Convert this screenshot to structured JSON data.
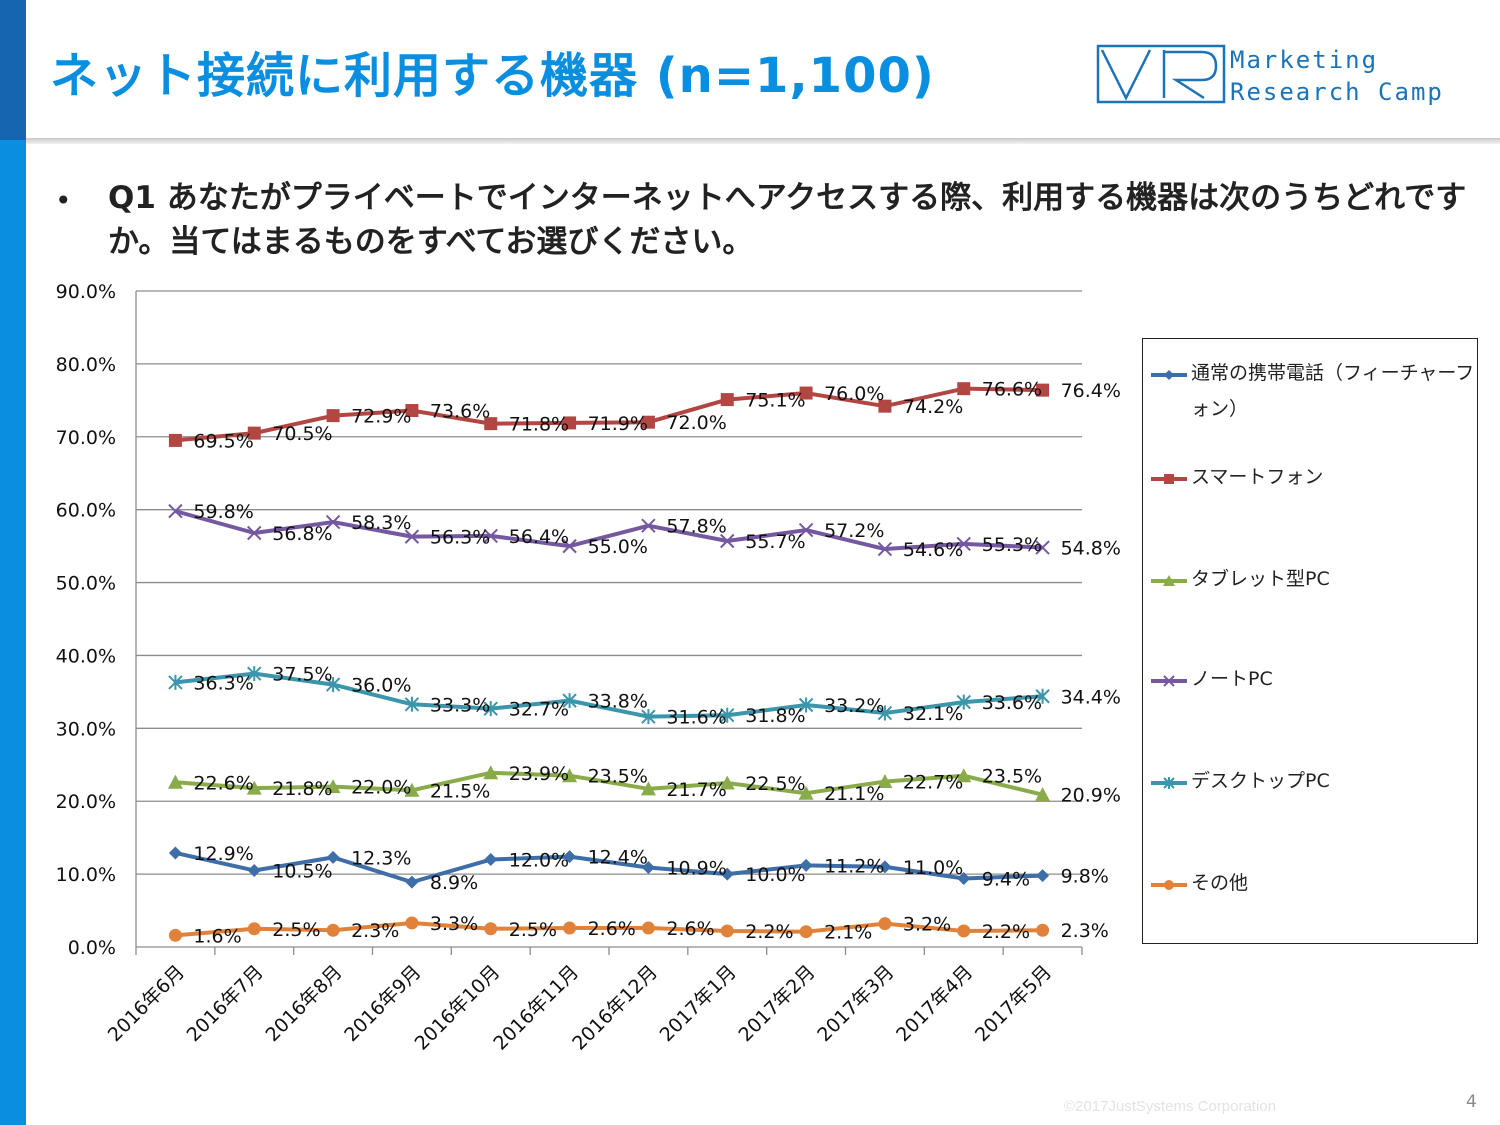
{
  "header": {
    "title": "ネット接続に利用する機器 (n=1,100)",
    "logo_line1": "Marketing",
    "logo_line2": "Research Camp"
  },
  "question": {
    "bullet": "•",
    "text": "Q1 あなたがプライベートでインターネットへアクセスする際、利用する機器は次のうちどれですか。当てはまるものをすべてお選びください。"
  },
  "footer": {
    "copyright": "©2017JustSystems Corporation",
    "page_number": "4"
  },
  "chart_data": {
    "type": "line",
    "title": "",
    "xlabel": "",
    "ylabel": "",
    "ylim": [
      0,
      90
    ],
    "ytick_step": 10,
    "ytick_labels": [
      "0.0%",
      "10.0%",
      "20.0%",
      "30.0%",
      "40.0%",
      "50.0%",
      "60.0%",
      "70.0%",
      "80.0%",
      "90.0%"
    ],
    "grid": true,
    "legend_position": "right",
    "categories": [
      "2016年6月",
      "2016年7月",
      "2016年8月",
      "2016年9月",
      "2016年10月",
      "2016年11月",
      "2016年12月",
      "2017年1月",
      "2017年2月",
      "2017年3月",
      "2017年4月",
      "2017年5月"
    ],
    "series": [
      {
        "name": "通常の携帯電話（フィーチャーフォン）",
        "key": "feature-phone",
        "color": "#3d6ea8",
        "marker": "diamond",
        "values": [
          12.9,
          10.5,
          12.3,
          8.9,
          12.0,
          12.4,
          10.9,
          10.0,
          11.2,
          11.0,
          9.4,
          9.8
        ],
        "labels": [
          "12.9%",
          "10.5%",
          "12.3%",
          "8.9%",
          "12.0%",
          "12.4%",
          "10.9%",
          "10.0%",
          "11.2%",
          "11.0%",
          "9.4%",
          "9.8%"
        ]
      },
      {
        "name": "スマートフォン",
        "key": "smartphone",
        "color": "#b24643",
        "marker": "square",
        "values": [
          69.5,
          70.5,
          72.9,
          73.6,
          71.8,
          71.9,
          72.0,
          75.1,
          76.0,
          74.2,
          76.6,
          76.4
        ],
        "labels": [
          "69.5%",
          "70.5%",
          "72.9%",
          "73.6%",
          "71.8%",
          "71.9%",
          "72.0%",
          "75.1%",
          "76.0%",
          "74.2%",
          "76.6%",
          "76.4%"
        ]
      },
      {
        "name": "タブレット型PC",
        "key": "tablet",
        "color": "#8aab4a",
        "marker": "triangle",
        "values": [
          22.6,
          21.8,
          22.0,
          21.5,
          23.9,
          23.5,
          21.7,
          22.5,
          21.1,
          22.7,
          23.5,
          20.9
        ],
        "labels": [
          "22.6%",
          "21.8%",
          "22.0%",
          "21.5%",
          "23.9%",
          "23.5%",
          "21.7%",
          "22.5%",
          "21.1%",
          "22.7%",
          "23.5%",
          "20.9%"
        ]
      },
      {
        "name": "ノートPC",
        "key": "notebook",
        "color": "#7459a0",
        "marker": "x",
        "values": [
          59.8,
          56.8,
          58.3,
          56.3,
          56.4,
          55.0,
          57.8,
          55.7,
          57.2,
          54.6,
          55.3,
          54.8
        ],
        "labels": [
          "59.8%",
          "56.8%",
          "58.3%",
          "56.3%",
          "56.4%",
          "55.0%",
          "57.8%",
          "55.7%",
          "57.2%",
          "54.6%",
          "55.3%",
          "54.8%"
        ]
      },
      {
        "name": "デスクトップPC",
        "key": "desktop",
        "color": "#3b95ab",
        "marker": "asterisk",
        "values": [
          36.3,
          37.5,
          36.0,
          33.3,
          32.7,
          33.8,
          31.6,
          31.8,
          33.2,
          32.1,
          33.6,
          34.4
        ],
        "labels": [
          "36.3%",
          "37.5%",
          "36.0%",
          "33.3%",
          "32.7%",
          "33.8%",
          "31.6%",
          "31.8%",
          "33.2%",
          "32.1%",
          "33.6%",
          "34.4%"
        ]
      },
      {
        "name": "その他",
        "key": "other",
        "color": "#e0823a",
        "marker": "circle",
        "values": [
          1.6,
          2.5,
          2.3,
          3.3,
          2.5,
          2.6,
          2.6,
          2.2,
          2.1,
          3.2,
          2.2,
          2.3
        ],
        "labels": [
          "1.6%",
          "2.5%",
          "2.3%",
          "3.3%",
          "2.5%",
          "2.6%",
          "2.6%",
          "2.2%",
          "2.1%",
          "3.2%",
          "2.2%",
          "2.3%"
        ]
      }
    ]
  }
}
